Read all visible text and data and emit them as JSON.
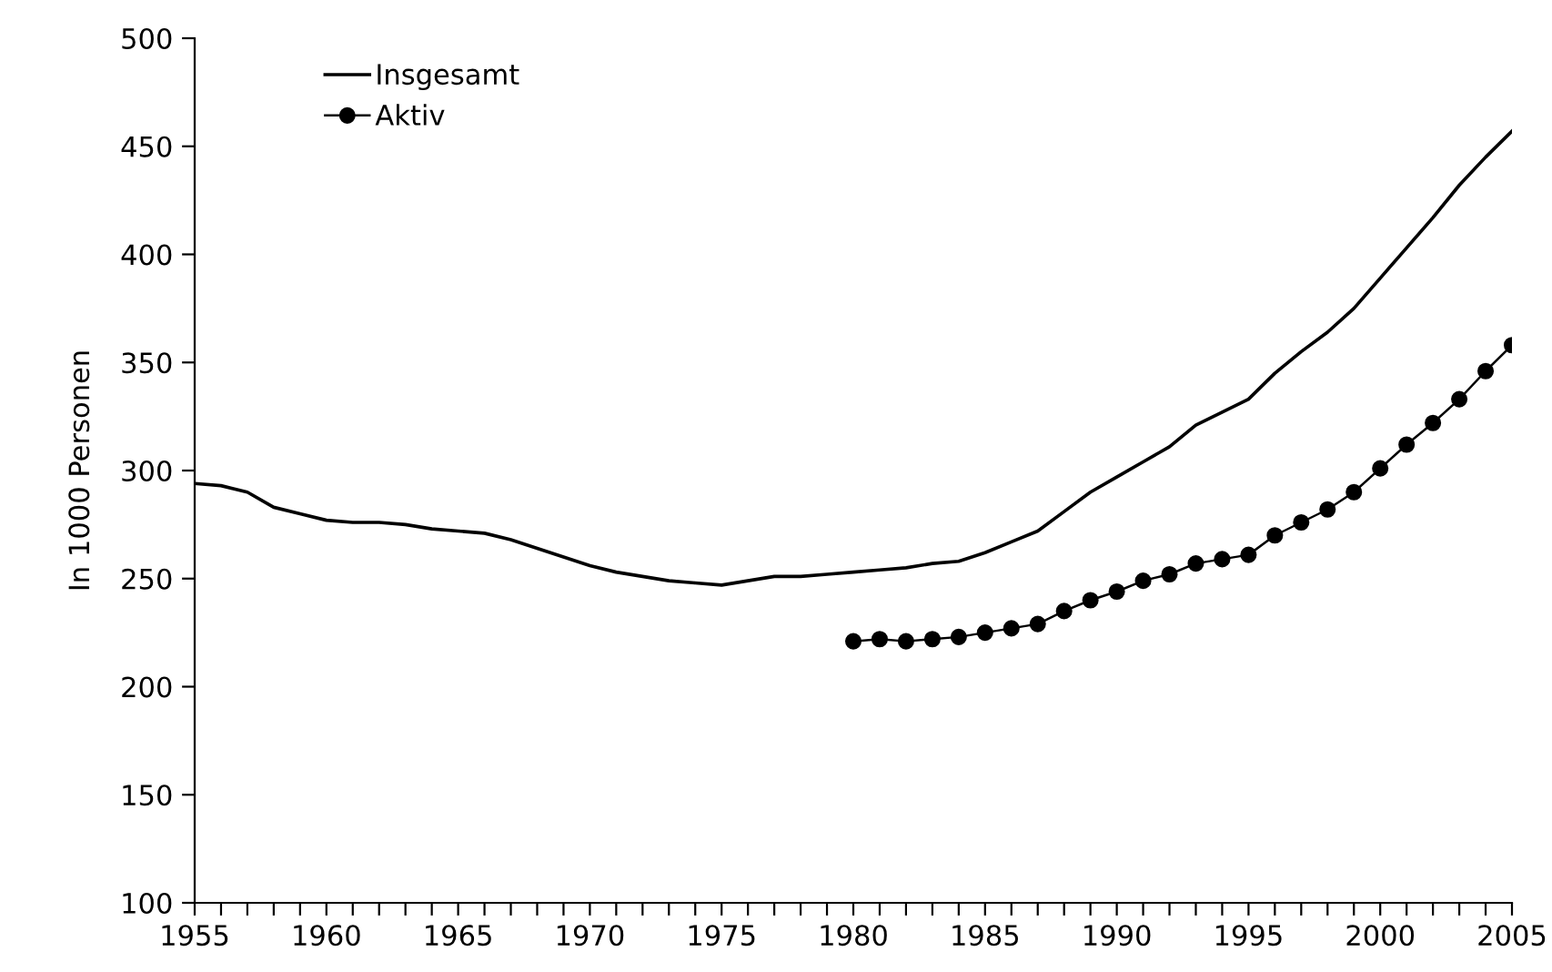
{
  "chart_data": {
    "type": "line",
    "ylabel": "In 1000 Personen",
    "xlim": [
      1955,
      2005
    ],
    "ylim": [
      100,
      500
    ],
    "xticks": [
      1955,
      {
        "value": 1956,
        "label": null
      },
      {
        "value": 1957,
        "label": null
      },
      {
        "value": 1958,
        "label": null
      },
      {
        "value": 1959,
        "label": null
      },
      1960,
      {
        "value": 1961,
        "label": null
      },
      {
        "value": 1962,
        "label": null
      },
      {
        "value": 1963,
        "label": null
      },
      {
        "value": 1964,
        "label": null
      },
      1965,
      {
        "value": 1966,
        "label": null
      },
      {
        "value": 1967,
        "label": null
      },
      {
        "value": 1968,
        "label": null
      },
      {
        "value": 1969,
        "label": null
      },
      1970,
      {
        "value": 1971,
        "label": null
      },
      {
        "value": 1972,
        "label": null
      },
      {
        "value": 1973,
        "label": null
      },
      {
        "value": 1974,
        "label": null
      },
      1975,
      {
        "value": 1976,
        "label": null
      },
      {
        "value": 1977,
        "label": null
      },
      {
        "value": 1978,
        "label": null
      },
      {
        "value": 1979,
        "label": null
      },
      1980,
      {
        "value": 1981,
        "label": null
      },
      {
        "value": 1982,
        "label": null
      },
      {
        "value": 1983,
        "label": null
      },
      {
        "value": 1984,
        "label": null
      },
      1985,
      {
        "value": 1986,
        "label": null
      },
      {
        "value": 1987,
        "label": null
      },
      {
        "value": 1988,
        "label": null
      },
      {
        "value": 1989,
        "label": null
      },
      1990,
      {
        "value": 1991,
        "label": null
      },
      {
        "value": 1992,
        "label": null
      },
      {
        "value": 1993,
        "label": null
      },
      {
        "value": 1994,
        "label": null
      },
      1995,
      {
        "value": 1996,
        "label": null
      },
      {
        "value": 1997,
        "label": null
      },
      {
        "value": 1998,
        "label": null
      },
      {
        "value": 1999,
        "label": null
      },
      2000,
      {
        "value": 2001,
        "label": null
      },
      {
        "value": 2002,
        "label": null
      },
      {
        "value": 2003,
        "label": null
      },
      {
        "value": 2004,
        "label": null
      },
      2005
    ],
    "yticks": [
      100,
      150,
      200,
      250,
      300,
      350,
      400,
      450,
      500
    ],
    "grid": false,
    "legend": "top left",
    "series": [
      {
        "name": "Insgesamt",
        "color": "#000000",
        "marker": "none",
        "x": [
          1955,
          1956,
          1957,
          1958,
          1959,
          1960,
          1961,
          1962,
          1963,
          1964,
          1965,
          1966,
          1967,
          1968,
          1969,
          1970,
          1971,
          1972,
          1973,
          1974,
          1975,
          1976,
          1977,
          1978,
          1979,
          1980,
          1981,
          1982,
          1983,
          1984,
          1985,
          1986,
          1987,
          1988,
          1989,
          1990,
          1991,
          1992,
          1993,
          1994,
          1995,
          1996,
          1997,
          1998,
          1999,
          2000,
          2001,
          2002,
          2003,
          2004,
          2005
        ],
        "values": [
          294,
          293,
          290,
          283,
          280,
          277,
          276,
          276,
          275,
          273,
          272,
          271,
          268,
          264,
          260,
          256,
          253,
          251,
          249,
          248,
          247,
          249,
          251,
          251,
          252,
          253,
          254,
          255,
          257,
          258,
          262,
          267,
          272,
          281,
          290,
          297,
          304,
          311,
          321,
          327,
          333,
          345,
          355,
          364,
          375,
          389,
          403,
          417,
          432,
          445,
          457
        ]
      },
      {
        "name": "Aktiv",
        "color": "#000000",
        "marker": "circle",
        "x": [
          1980,
          1981,
          1982,
          1983,
          1984,
          1985,
          1986,
          1987,
          1988,
          1989,
          1990,
          1991,
          1992,
          1993,
          1994,
          1995,
          1996,
          1997,
          1998,
          1999,
          2000,
          2001,
          2002,
          2003,
          2004,
          2005
        ],
        "values": [
          221,
          222,
          221,
          222,
          223,
          225,
          227,
          229,
          235,
          240,
          244,
          249,
          252,
          257,
          259,
          261,
          270,
          276,
          282,
          290,
          301,
          312,
          322,
          333,
          346,
          358
        ]
      }
    ]
  }
}
